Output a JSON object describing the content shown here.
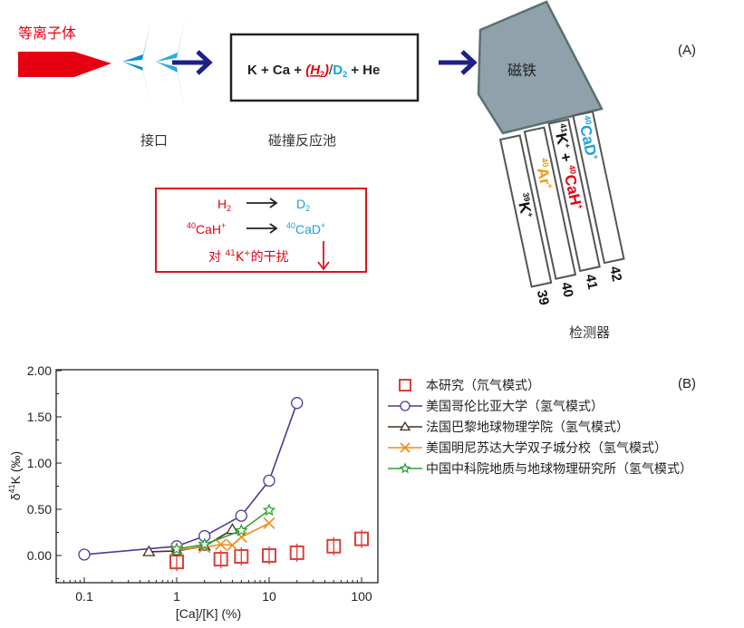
{
  "figure": {
    "panel_a": "(A)",
    "panel_b": "(B)"
  },
  "diagram": {
    "plasma": "等离子体",
    "interface": "接口",
    "cell": "碰撞反应池",
    "magnet": "磁铁",
    "detector": "检测器",
    "cell_equation": {
      "k": "K + Ca + ",
      "h2": "(H",
      "h2_sub": "2",
      "h2_close": ")",
      "slash": "/",
      "d2": "D",
      "d2_sub": "2",
      "he": " + He"
    },
    "reactions": {
      "h2": "H",
      "h2_sub": "2",
      "d2": "D",
      "d2_sub": "2",
      "cah_sup": "40",
      "cah": "CaH",
      "cah_plus": "+",
      "cad_sup": "40",
      "cad": "CaD",
      "cad_plus": "+",
      "note_pre": "对 ",
      "note_sup": "41",
      "note_k": "K",
      "note_plus": "+",
      "note_post": "的干扰"
    },
    "slits": [
      {
        "mass": "39",
        "sup": "39",
        "ion": "K",
        "charge": "+"
      },
      {
        "mass": "40",
        "sup": "40",
        "ion": "Ar",
        "charge": "+"
      },
      {
        "mass": "41",
        "sup": "41",
        "ion": "K",
        "charge": "+",
        "plus": " + ",
        "sup2": "40",
        "ion2": "CaH",
        "charge2": "+"
      },
      {
        "mass": "42",
        "sup": "40",
        "ion": "CaD",
        "charge": "+"
      }
    ],
    "colors": {
      "plasma": "#e60012",
      "interface_1": "#0a8fd6",
      "interface_2": "#29abe2",
      "arrow": "#1d2087",
      "magnet": "#8fa1aa",
      "hydrogen": "#e60012",
      "deuterium": "#1ca0dc",
      "argon": "#f39800",
      "note_box": "#d7161e"
    }
  },
  "chart_data": {
    "type": "line",
    "xlabel": "[Ca]/[K] (%)",
    "ylabel_pre": "δ",
    "ylabel_sup": "41",
    "ylabel_post": "K (‰)",
    "xscale": "log",
    "xlim": [
      0.05,
      150
    ],
    "ylim": [
      -0.3,
      2.0
    ],
    "xticks": [
      0.1,
      1,
      10,
      100
    ],
    "xtick_labels": [
      "0.1",
      "1",
      "10",
      "100"
    ],
    "yticks": [
      0,
      0.5,
      1.0,
      1.5,
      2.0
    ],
    "ytick_labels": [
      "0.00",
      "0.50",
      "1.00",
      "1.50",
      "2.00"
    ],
    "grid": false,
    "legend_placement": "top-right outside",
    "series": [
      {
        "name": "本研究（氘气模式）",
        "marker": "square",
        "color": "#d9413b",
        "line": false,
        "x": [
          1,
          3,
          5,
          10,
          20,
          50,
          100
        ],
        "y": [
          -0.07,
          -0.04,
          -0.01,
          0.0,
          0.03,
          0.1,
          0.18
        ]
      },
      {
        "name": "美国哥伦比亚大学（氢气模式）",
        "marker": "circle",
        "color": "#4b3a9c",
        "line": true,
        "x": [
          0.1,
          1,
          2,
          5,
          10,
          20
        ],
        "y": [
          0.01,
          0.1,
          0.21,
          0.43,
          0.81,
          1.65
        ]
      },
      {
        "name": "法国巴黎地球物理学院（氢气模式）",
        "marker": "triangle",
        "color": "#4a2f1d",
        "line": true,
        "x": [
          0.5,
          1,
          2,
          4
        ],
        "y": [
          0.04,
          0.05,
          0.1,
          0.28
        ]
      },
      {
        "name": "美国明尼苏达大学双子城分校（氢气模式）",
        "marker": "x",
        "color": "#f08c1e",
        "line": true,
        "x": [
          1,
          2,
          3,
          4,
          5,
          10
        ],
        "y": [
          0.06,
          0.09,
          0.12,
          0.11,
          0.2,
          0.35
        ]
      },
      {
        "name": "中国中科院地质与地球物理研究所（氢气模式）",
        "marker": "star",
        "color": "#2ea13a",
        "line": true,
        "x": [
          1,
          2,
          5,
          10
        ],
        "y": [
          0.07,
          0.12,
          0.27,
          0.49
        ]
      }
    ]
  }
}
